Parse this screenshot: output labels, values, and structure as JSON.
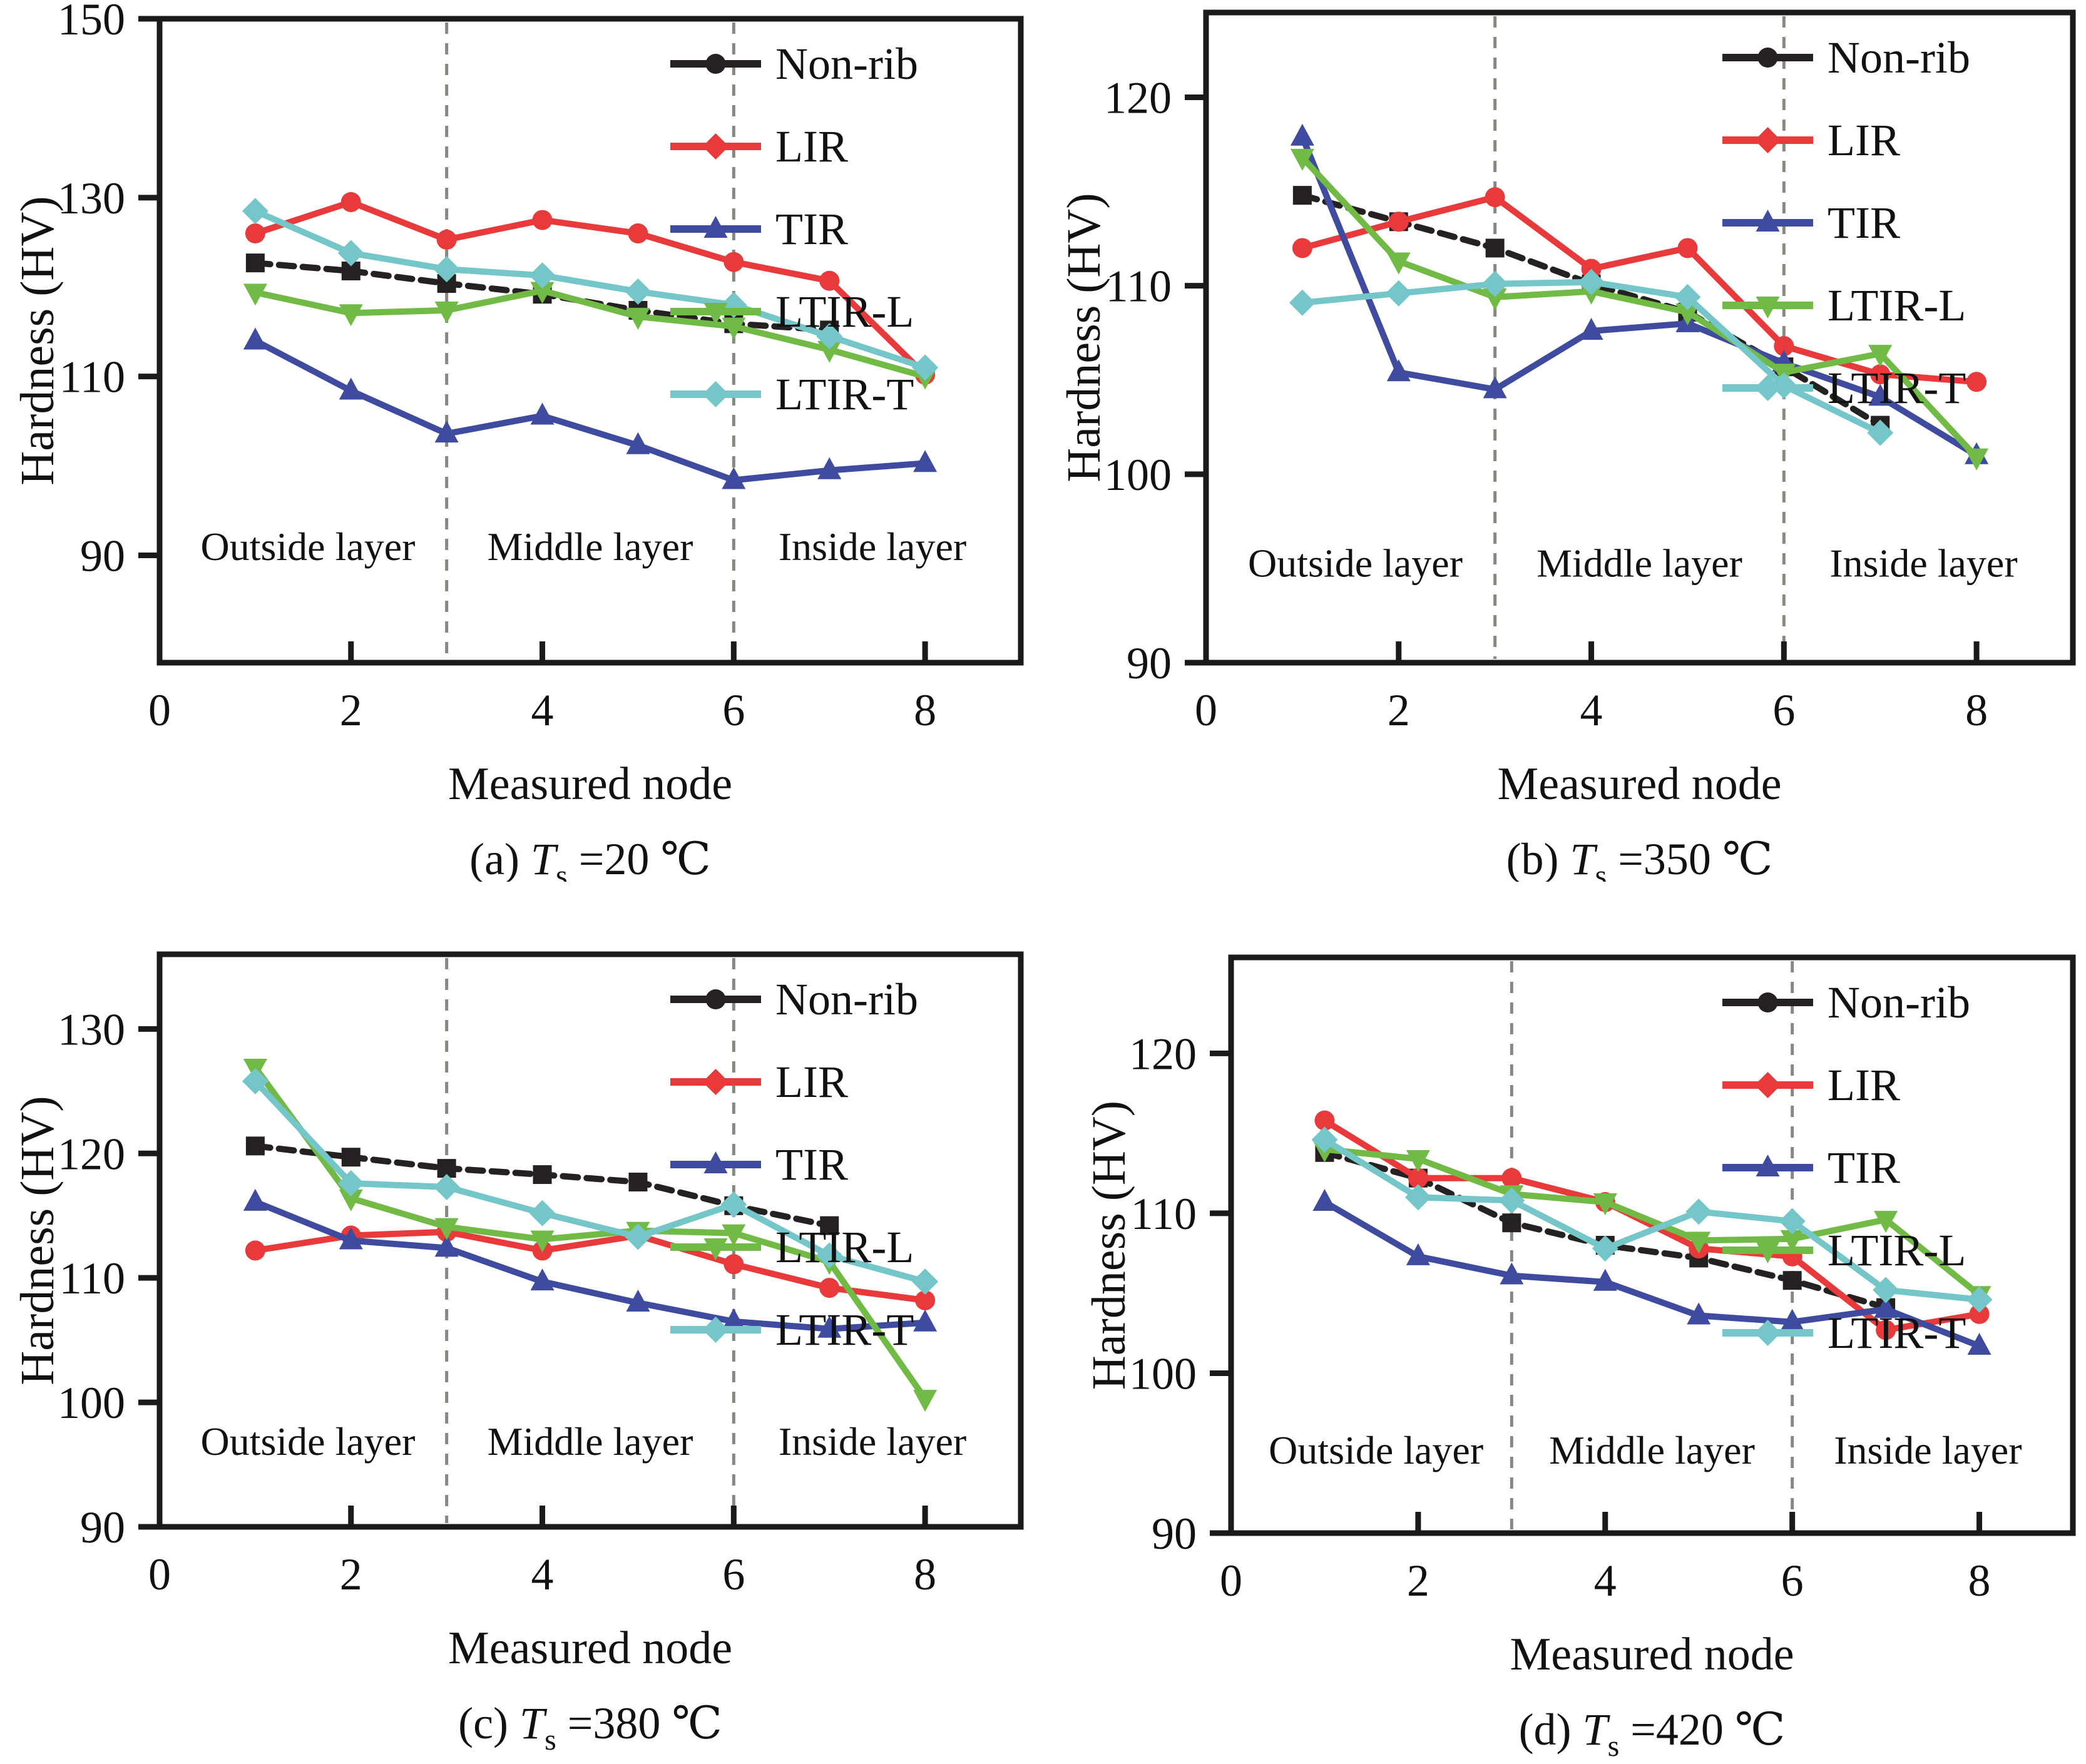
{
  "page": {
    "background": "#ffffff",
    "figure_description": "Hardness (HV) versus measured node for four substrate temperatures"
  },
  "style": {
    "axis_color": "#1a1a1a",
    "dashed_line_color": "#8b8680",
    "series_colors": {
      "Non-rib": "#262121",
      "LIR": "#e8393b",
      "TIR": "#3f4b9e",
      "LTIR-L": "#70ba45",
      "LTIR-T": "#74c6c9"
    }
  },
  "chart_data": [
    {
      "id": "a",
      "type": "line",
      "caption": {
        "prefix": "(a)",
        "symbol": "T",
        "subscript": "s",
        "value": "=20 ℃"
      },
      "xlabel": "Measured node",
      "ylabel": "Hardness (HV)",
      "xlim": [
        0,
        9
      ],
      "ylim": [
        78,
        150
      ],
      "xticks": [
        0,
        2,
        4,
        6,
        8
      ],
      "yticks": [
        90,
        110,
        130,
        150
      ],
      "x": [
        1,
        2,
        3,
        4,
        5,
        6,
        7,
        8
      ],
      "dashed_vlines_x": [
        3,
        6
      ],
      "region_label_y": 91,
      "region_labels": [
        {
          "text": "Outside layer",
          "x": 1.55
        },
        {
          "text": "Middle layer",
          "x": 4.5
        },
        {
          "text": "Inside layer",
          "x": 7.45
        }
      ],
      "grid": false,
      "legend_position": "top-right",
      "series": [
        {
          "name": "Non-rib",
          "color": "#262121",
          "marker": "square",
          "legend_marker": "circle",
          "line_dash": "24 14",
          "values": [
            122.7,
            121.8,
            120.4,
            119.2,
            117.4,
            115.9,
            115.2,
            null
          ]
        },
        {
          "name": "LIR",
          "color": "#e8393b",
          "marker": "circle",
          "legend_marker": "diamond",
          "line_dash": null,
          "values": [
            126.0,
            129.5,
            125.3,
            127.5,
            126.0,
            122.8,
            120.7,
            110.2
          ]
        },
        {
          "name": "TIR",
          "color": "#3f4b9e",
          "marker": "triangle",
          "legend_marker": "triangle",
          "line_dash": null,
          "values": [
            114.0,
            108.4,
            103.6,
            105.6,
            102.3,
            98.4,
            99.5,
            100.3
          ]
        },
        {
          "name": "LTIR-L",
          "color": "#70ba45",
          "marker": "triangle-down",
          "legend_marker": "triangle-down",
          "line_dash": null,
          "values": [
            119.4,
            117.1,
            117.4,
            119.6,
            116.7,
            115.6,
            113.0,
            110.0
          ]
        },
        {
          "name": "LTIR-T",
          "color": "#74c6c9",
          "marker": "diamond",
          "legend_marker": "diamond",
          "line_dash": null,
          "values": [
            128.5,
            123.8,
            122.0,
            121.3,
            119.5,
            118.0,
            114.5,
            111.0
          ]
        }
      ]
    },
    {
      "id": "b",
      "type": "line",
      "caption": {
        "prefix": "(b)",
        "symbol": "T",
        "subscript": "s",
        "value": "=350 ℃"
      },
      "xlabel": "Measured node",
      "ylabel": "Hardness (HV)",
      "xlim": [
        0,
        9
      ],
      "ylim": [
        90,
        124.5
      ],
      "xticks": [
        0,
        2,
        4,
        6,
        8
      ],
      "yticks": [
        90,
        100,
        110,
        120
      ],
      "x": [
        1,
        2,
        3,
        4,
        5,
        6,
        7,
        8
      ],
      "dashed_vlines_x": [
        3,
        6
      ],
      "region_label_y": 95.3,
      "region_labels": [
        {
          "text": "Outside layer",
          "x": 1.55
        },
        {
          "text": "Middle layer",
          "x": 4.5
        },
        {
          "text": "Inside layer",
          "x": 7.45
        }
      ],
      "grid": false,
      "legend_position": "top-right",
      "series": [
        {
          "name": "Non-rib",
          "color": "#262121",
          "marker": "square",
          "legend_marker": "circle",
          "line_dash": "24 14",
          "values": [
            114.8,
            113.4,
            112.0,
            110.1,
            108.6,
            105.7,
            102.6,
            null
          ]
        },
        {
          "name": "LIR",
          "color": "#e8393b",
          "marker": "circle",
          "legend_marker": "diamond",
          "line_dash": null,
          "values": [
            112.0,
            113.4,
            114.7,
            110.9,
            112.0,
            106.8,
            105.3,
            104.9
          ]
        },
        {
          "name": "TIR",
          "color": "#3f4b9e",
          "marker": "triangle",
          "legend_marker": "triangle",
          "line_dash": null,
          "values": [
            117.9,
            105.4,
            104.5,
            107.6,
            108.0,
            105.9,
            104.1,
            101.0
          ]
        },
        {
          "name": "LTIR-L",
          "color": "#70ba45",
          "marker": "triangle-down",
          "legend_marker": "triangle-down",
          "line_dash": null,
          "values": [
            116.8,
            111.3,
            109.4,
            109.7,
            108.6,
            105.4,
            106.4,
            100.9
          ]
        },
        {
          "name": "LTIR-T",
          "color": "#74c6c9",
          "marker": "diamond",
          "legend_marker": "diamond",
          "line_dash": null,
          "values": [
            109.1,
            109.6,
            110.1,
            110.2,
            109.4,
            104.7,
            102.2,
            null
          ]
        }
      ]
    },
    {
      "id": "c",
      "type": "line",
      "caption": {
        "prefix": "(c)",
        "symbol": "T",
        "subscript": "s",
        "value": "=380 ℃"
      },
      "xlabel": "Measured node",
      "ylabel": "Hardness (HV)",
      "xlim": [
        0,
        9
      ],
      "ylim": [
        90,
        136
      ],
      "xticks": [
        0,
        2,
        4,
        6,
        8
      ],
      "yticks": [
        90,
        100,
        110,
        120,
        130
      ],
      "x": [
        1,
        2,
        3,
        4,
        5,
        6,
        7,
        8
      ],
      "dashed_vlines_x": [
        3,
        6
      ],
      "region_label_y": 96.9,
      "region_labels": [
        {
          "text": "Outside layer",
          "x": 1.55
        },
        {
          "text": "Middle layer",
          "x": 4.5
        },
        {
          "text": "Inside layer",
          "x": 7.45
        }
      ],
      "grid": false,
      "legend_position": "top-right",
      "series": [
        {
          "name": "Non-rib",
          "color": "#262121",
          "marker": "square",
          "legend_marker": "circle",
          "line_dash": "24 14",
          "values": [
            120.6,
            119.7,
            118.8,
            118.3,
            117.7,
            115.8,
            114.2,
            null
          ]
        },
        {
          "name": "LIR",
          "color": "#e8393b",
          "marker": "circle",
          "legend_marker": "diamond",
          "line_dash": null,
          "values": [
            112.2,
            113.4,
            113.7,
            112.2,
            113.4,
            111.1,
            109.2,
            108.2
          ]
        },
        {
          "name": "TIR",
          "color": "#3f4b9e",
          "marker": "triangle",
          "legend_marker": "triangle",
          "line_dash": null,
          "values": [
            116.1,
            113.0,
            112.4,
            109.7,
            108.0,
            106.5,
            105.9,
            106.4
          ]
        },
        {
          "name": "LTIR-L",
          "color": "#70ba45",
          "marker": "triangle-down",
          "legend_marker": "triangle-down",
          "line_dash": null,
          "values": [
            126.9,
            116.4,
            114.1,
            113.1,
            113.8,
            113.6,
            111.3,
            100.3
          ]
        },
        {
          "name": "LTIR-T",
          "color": "#74c6c9",
          "marker": "diamond",
          "legend_marker": "diamond",
          "line_dash": null,
          "values": [
            125.8,
            117.6,
            117.3,
            115.2,
            113.3,
            115.9,
            111.8,
            109.7
          ]
        }
      ]
    },
    {
      "id": "d",
      "type": "line",
      "caption": {
        "prefix": "(d)",
        "symbol": "T",
        "subscript": "s",
        "value": "=420 ℃"
      },
      "xlabel": "Measured node",
      "ylabel": "Hardness (HV)",
      "xlim": [
        0,
        9
      ],
      "ylim": [
        90,
        126
      ],
      "xticks": [
        0,
        2,
        4,
        6,
        8
      ],
      "yticks": [
        90,
        100,
        110,
        120
      ],
      "x": [
        1,
        2,
        3,
        4,
        5,
        6,
        7,
        8
      ],
      "dashed_vlines_x": [
        3,
        6
      ],
      "region_label_y": 95.2,
      "region_labels": [
        {
          "text": "Outside layer",
          "x": 1.55
        },
        {
          "text": "Middle layer",
          "x": 4.5
        },
        {
          "text": "Inside layer",
          "x": 7.45
        }
      ],
      "grid": false,
      "legend_position": "top-right",
      "series": [
        {
          "name": "Non-rib",
          "color": "#262121",
          "marker": "square",
          "legend_marker": "circle",
          "line_dash": "24 14",
          "values": [
            113.8,
            112.2,
            109.4,
            108.0,
            107.2,
            105.8,
            104.1,
            null
          ]
        },
        {
          "name": "LIR",
          "color": "#e8393b",
          "marker": "circle",
          "legend_marker": "diamond",
          "line_dash": null,
          "values": [
            115.8,
            112.2,
            112.2,
            110.7,
            107.8,
            107.3,
            102.7,
            103.7
          ]
        },
        {
          "name": "TIR",
          "color": "#3f4b9e",
          "marker": "triangle",
          "legend_marker": "triangle",
          "line_dash": null,
          "values": [
            110.7,
            107.3,
            106.1,
            105.7,
            103.6,
            103.2,
            104.0,
            101.7
          ]
        },
        {
          "name": "LTIR-L",
          "color": "#70ba45",
          "marker": "triangle-down",
          "legend_marker": "triangle-down",
          "line_dash": null,
          "values": [
            114.0,
            113.4,
            111.2,
            110.7,
            108.3,
            108.4,
            109.6,
            104.9
          ]
        },
        {
          "name": "LTIR-T",
          "color": "#74c6c9",
          "marker": "diamond",
          "legend_marker": "diamond",
          "line_dash": null,
          "values": [
            114.6,
            111.0,
            110.8,
            107.8,
            110.1,
            109.5,
            105.2,
            104.6
          ]
        }
      ]
    }
  ]
}
